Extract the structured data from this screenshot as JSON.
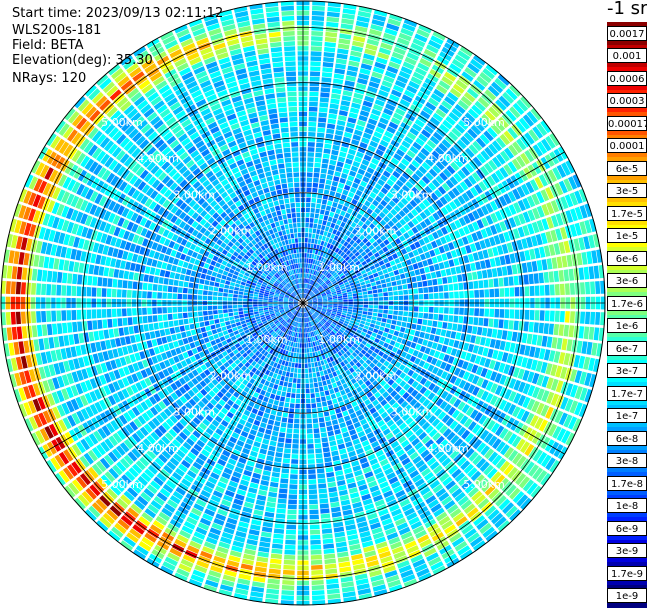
{
  "chart_data": {
    "type": "heatmap",
    "plot_type": "polar PPI scan",
    "info": {
      "start_time": "Start time: 2023/09/13 02:11:12",
      "device": "WLS200s-181",
      "field": "Field: BETA",
      "elevation": "Elevation(deg): 35.30",
      "nrays": "NRays: 120"
    },
    "unit_label": "-1 sr",
    "range_rings_km": [
      1,
      2,
      3,
      4,
      5
    ],
    "ring_labels": [
      "1.00km",
      "2.00km",
      "3.00km",
      "4.00km",
      "5.00km"
    ],
    "max_range_km": 5.5,
    "n_rays": 120,
    "colorbar": {
      "labels": [
        "0.0017",
        "0.001",
        "0.0006",
        "0.0003",
        "0.00017",
        "0.0001",
        "6e-5",
        "3e-5",
        "1.7e-5",
        "1e-5",
        "6e-6",
        "3e-6",
        "1.7e-6",
        "1e-6",
        "6e-7",
        "3e-7",
        "1.7e-7",
        "1e-7",
        "6e-8",
        "3e-8",
        "1.7e-8",
        "1e-8",
        "6e-9",
        "3e-9",
        "1.7e-9",
        "1e-9"
      ],
      "colors": [
        "#8b0000",
        "#c00000",
        "#ee0000",
        "#ff2200",
        "#ff5500",
        "#ff7f00",
        "#ff9f00",
        "#ffbf00",
        "#ffdf00",
        "#ffff00",
        "#d4ff2a",
        "#aaff55",
        "#7fff7f",
        "#55ffaa",
        "#2affd4",
        "#00ffff",
        "#00dfff",
        "#00bfff",
        "#009fff",
        "#007fff",
        "#005fff",
        "#003fff",
        "#001fff",
        "#0000e0",
        "#0000b0",
        "#000080"
      ]
    }
  }
}
